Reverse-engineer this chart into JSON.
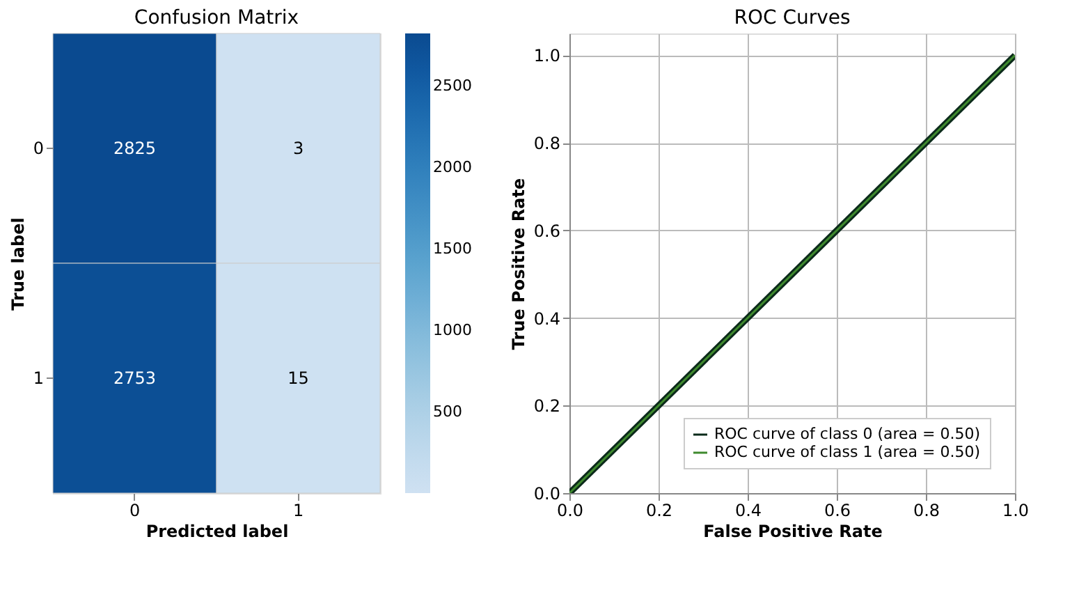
{
  "chart_data": [
    {
      "type": "heatmap",
      "title": "Confusion Matrix",
      "xlabel": "Predicted label",
      "ylabel": "True label",
      "categories": [
        "0",
        "1"
      ],
      "y_categories": [
        "0",
        "1"
      ],
      "cells": [
        [
          2825,
          3
        ],
        [
          2753,
          15
        ]
      ],
      "data_labels": true,
      "clim": [
        3,
        2825
      ],
      "cticks": [
        500,
        1000,
        1500,
        2000,
        2500
      ]
    },
    {
      "type": "line",
      "title": "ROC Curves",
      "xlabel": "False Positive Rate",
      "ylabel": "True Positive Rate",
      "x": [
        0,
        1
      ],
      "series": [
        {
          "name": "ROC curve of class 0 (area = 0.50)",
          "color": "#0b2a1a",
          "values": [
            0,
            1
          ]
        },
        {
          "name": "ROC curve of class 1 (area = 0.50)",
          "color": "#3f8a2e",
          "values": [
            0,
            1
          ]
        }
      ],
      "xlim": [
        0,
        1
      ],
      "ylim": [
        0,
        1.05
      ],
      "xticks": [
        {
          "value": 0,
          "label": "0.0"
        },
        {
          "value": 0.2,
          "label": "0.2"
        },
        {
          "value": 0.4,
          "label": "0.4"
        },
        {
          "value": 0.6,
          "label": "0.6"
        },
        {
          "value": 0.8,
          "label": "0.8"
        },
        {
          "value": 1,
          "label": "1.0"
        }
      ],
      "yticks": [
        {
          "value": 0,
          "label": "0.0"
        },
        {
          "value": 0.2,
          "label": "0.2"
        },
        {
          "value": 0.4,
          "label": "0.4"
        },
        {
          "value": 0.6,
          "label": "0.6"
        },
        {
          "value": 0.8,
          "label": "0.8"
        },
        {
          "value": 1,
          "label": "1.0"
        }
      ],
      "grid": true,
      "legend": "bottom right",
      "line_style": "solid"
    }
  ]
}
